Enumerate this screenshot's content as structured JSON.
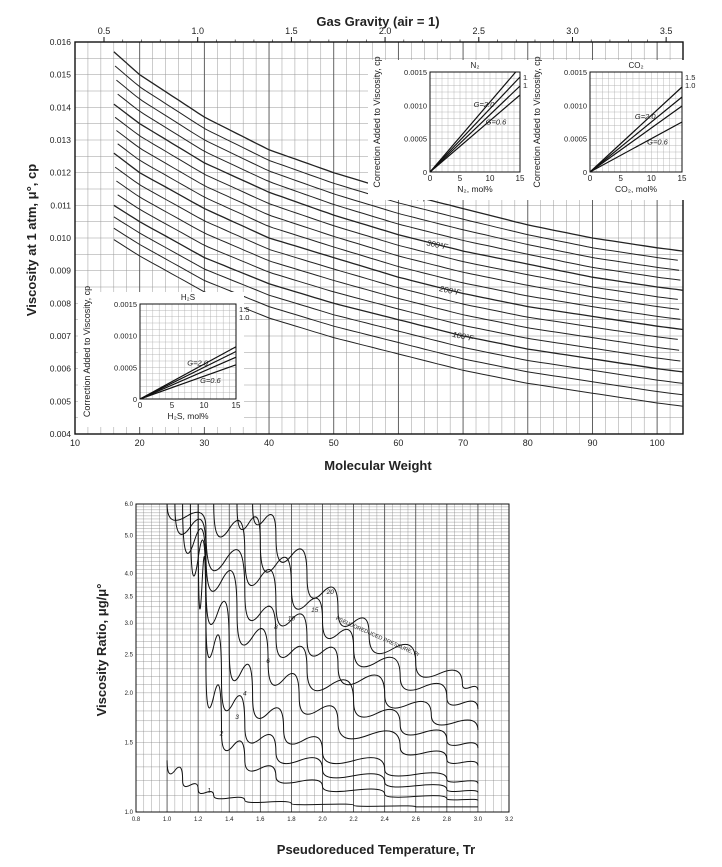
{
  "chart_data": [
    {
      "type": "line",
      "title": "Gas Gravity (air = 1)",
      "xlabel": "Molecular Weight",
      "ylabel": "Viscosity at 1 atm, μ°, cp",
      "xlim": [
        10,
        104
      ],
      "ylim": [
        0.004,
        0.016
      ],
      "x_ticks": [
        "10",
        "20",
        "30",
        "40",
        "50",
        "60",
        "70",
        "80",
        "90",
        "100"
      ],
      "y_ticks": [
        "0.004",
        "0.005",
        "0.006",
        "0.007",
        "0.008",
        "0.009",
        "0.010",
        "0.011",
        "0.012",
        "0.013",
        "0.014",
        "0.015",
        "0.016"
      ],
      "top_axis": {
        "ticks": [
          "0.5",
          "1.0",
          "1.5",
          "2.0",
          "2.5",
          "3.0",
          "3.5"
        ],
        "values": [
          0.5,
          1.0,
          1.5,
          2.0,
          2.5,
          3.0,
          3.5
        ]
      },
      "series": [
        {
          "name": "400°F",
          "label": "400°F",
          "x": [
            16,
            20,
            30,
            40,
            50,
            60,
            70,
            80,
            90,
            100,
            104
          ],
          "y": [
            0.0157,
            0.015,
            0.0137,
            0.0127,
            0.012,
            0.0114,
            0.0109,
            0.0104,
            0.01,
            0.0097,
            0.0096
          ]
        },
        {
          "name": "300°F",
          "label": "300°F",
          "x": [
            16,
            20,
            30,
            40,
            50,
            60,
            70,
            80,
            90,
            100,
            104
          ],
          "y": [
            0.0141,
            0.0135,
            0.0123,
            0.0114,
            0.0107,
            0.0101,
            0.0096,
            0.0092,
            0.0088,
            0.0085,
            0.0084
          ]
        },
        {
          "name": "200°F",
          "label": "200°F",
          "x": [
            16,
            20,
            30,
            40,
            50,
            60,
            70,
            80,
            90,
            100,
            104
          ],
          "y": [
            0.0126,
            0.012,
            0.0109,
            0.01,
            0.0094,
            0.0088,
            0.0083,
            0.0079,
            0.0076,
            0.0073,
            0.0072
          ]
        },
        {
          "name": "100°F",
          "label": "100°F",
          "x": [
            16,
            20,
            30,
            40,
            50,
            60,
            70,
            80,
            90,
            100,
            104
          ],
          "y": [
            0.011,
            0.0105,
            0.0094,
            0.0086,
            0.008,
            0.0075,
            0.007,
            0.0066,
            0.0063,
            0.006,
            0.0059
          ]
        }
      ],
      "insets": [
        {
          "name": "N2",
          "title": "N₂",
          "xlabel": "N₂, mol%",
          "ylabel": "Correction Added to Viscosity, cp",
          "x_ticks": [
            "0",
            "5",
            "10",
            "15"
          ],
          "y_ticks": [
            "0",
            "0.0005",
            "0.0010",
            "0.0015"
          ],
          "xlim": [
            0,
            15
          ],
          "ylim": [
            0,
            0.0015
          ],
          "lines": [
            {
              "name": "G=2.0",
              "label": "G=2.0",
              "slope": 0.000105
            },
            {
              "name": "G=1.5",
              "label": "1.5",
              "slope": 9.5e-05
            },
            {
              "name": "G=1.0",
              "label": "1.0",
              "slope": 8.6e-05
            },
            {
              "name": "G=0.6",
              "label": "G=0.6",
              "slope": 7.7e-05
            }
          ],
          "curve_labels": [
            "1.5",
            "1.0"
          ]
        },
        {
          "name": "CO2",
          "title": "CO₂",
          "xlabel": "CO₂, mol%",
          "ylabel": "Correction Added to Viscosity, cp",
          "x_ticks": [
            "0",
            "5",
            "10",
            "15"
          ],
          "y_ticks": [
            "0",
            "0.0005",
            "0.0010",
            "0.0015"
          ],
          "xlim": [
            0,
            15
          ],
          "ylim": [
            0,
            0.0015
          ],
          "lines": [
            {
              "name": "G=2.0",
              "label": "G=2.0",
              "slope": 8.5e-05
            },
            {
              "name": "G=1.5",
              "label": "1.5",
              "slope": 7.5e-05
            },
            {
              "name": "G=1.0",
              "label": "1.0",
              "slope": 6.6e-05
            },
            {
              "name": "G=0.6",
              "label": "G=0.6",
              "slope": 5e-05
            }
          ],
          "curve_labels": [
            "1.5",
            "1.0"
          ]
        },
        {
          "name": "H2S",
          "title": "H₂S",
          "xlabel": "H₂S, mol%",
          "ylabel": "Correction Added to Viscosity, cp",
          "x_ticks": [
            "0",
            "5",
            "10",
            "15"
          ],
          "y_ticks": [
            "0",
            "0.0005",
            "0.0010",
            "0.0015"
          ],
          "xlim": [
            0,
            15
          ],
          "ylim": [
            0,
            0.0015
          ],
          "lines": [
            {
              "name": "G=2.0",
              "label": "G=2.0",
              "slope": 5.5e-05
            },
            {
              "name": "G=1.5",
              "label": "1.5",
              "slope": 5e-05
            },
            {
              "name": "G=1.0",
              "label": "1.0",
              "slope": 4.4e-05
            },
            {
              "name": "G=0.6",
              "label": "G=0.6",
              "slope": 3.6e-05
            }
          ],
          "curve_labels": [
            "1.5",
            "1.0"
          ]
        }
      ]
    },
    {
      "type": "line",
      "title": "",
      "xlabel": "Pseudoreduced Temperature, Tr",
      "ylabel": "Viscosity Ratio, μg/μ°",
      "xlim": [
        0.8,
        3.0
      ],
      "ylim": [
        1.0,
        6.0
      ],
      "y_scale": "log",
      "x_ticks": [
        "0.8",
        "1.0",
        "1.2",
        "1.4",
        "1.6",
        "1.8",
        "2.0",
        "2.2",
        "2.4",
        "2.6",
        "2.8",
        "3.0",
        "3.2"
      ],
      "x_tick_values": [
        0.8,
        1.0,
        1.2,
        1.4,
        1.6,
        1.8,
        2.0,
        2.2,
        2.4,
        2.6,
        2.8,
        3.0,
        3.2
      ],
      "y_ticks": [
        "1.0",
        "1.5",
        "2.0",
        "2.5",
        "3.0",
        "3.5",
        "4.0",
        "5.0",
        "6.0"
      ],
      "y_tick_values": [
        1.0,
        1.5,
        2.0,
        2.5,
        3.0,
        3.5,
        4.0,
        5.0,
        6.0
      ],
      "annotation": "PSEUDOREDUCED PRESSURE, Pr",
      "series": [
        {
          "name": "Pr=1",
          "label": "1",
          "x": [
            1.0,
            1.1,
            1.2,
            1.3,
            1.5,
            1.8,
            2.2,
            2.6,
            3.0
          ],
          "y": [
            1.35,
            1.2,
            1.14,
            1.1,
            1.07,
            1.05,
            1.04,
            1.03,
            1.03
          ]
        },
        {
          "name": "Pr=2",
          "label": "2",
          "x": [
            1.2,
            1.25,
            1.35,
            1.5,
            1.7,
            2.0,
            2.4,
            2.8,
            3.0
          ],
          "y": [
            6.0,
            2.4,
            1.6,
            1.35,
            1.23,
            1.16,
            1.11,
            1.08,
            1.07
          ]
        },
        {
          "name": "Pr=3",
          "label": "3",
          "x": [
            1.15,
            1.25,
            1.35,
            1.5,
            1.7,
            2.0,
            2.4,
            2.8,
            3.0
          ],
          "y": [
            6.0,
            3.2,
            2.15,
            1.65,
            1.42,
            1.28,
            1.19,
            1.14,
            1.12
          ]
        },
        {
          "name": "Pr=4",
          "label": "4",
          "x": [
            1.1,
            1.25,
            1.4,
            1.55,
            1.75,
            2.0,
            2.4,
            2.8,
            3.0
          ],
          "y": [
            6.0,
            3.9,
            2.6,
            1.95,
            1.62,
            1.42,
            1.28,
            1.21,
            1.18
          ]
        },
        {
          "name": "Pr=6",
          "label": "6",
          "x": [
            1.05,
            1.25,
            1.45,
            1.65,
            1.85,
            2.1,
            2.5,
            2.8,
            3.0
          ],
          "y": [
            6.0,
            4.6,
            3.2,
            2.4,
            1.95,
            1.68,
            1.46,
            1.36,
            1.31
          ]
        },
        {
          "name": "Pr=8",
          "label": "8",
          "x": [
            1.0,
            1.25,
            1.5,
            1.7,
            1.9,
            2.2,
            2.5,
            2.8,
            3.0
          ],
          "y": [
            6.0,
            5.2,
            3.6,
            2.8,
            2.3,
            1.9,
            1.66,
            1.52,
            1.45
          ]
        },
        {
          "name": "Pr=10",
          "label": "10",
          "x": [
            1.3,
            1.5,
            1.7,
            1.9,
            2.1,
            2.4,
            2.7,
            3.0
          ],
          "y": [
            6.0,
            4.5,
            3.4,
            2.75,
            2.35,
            1.98,
            1.76,
            1.61
          ]
        },
        {
          "name": "Pr=15",
          "label": "15",
          "x": [
            1.45,
            1.6,
            1.8,
            2.0,
            2.2,
            2.5,
            2.8,
            3.0
          ],
          "y": [
            6.0,
            4.8,
            3.7,
            3.05,
            2.6,
            2.2,
            1.95,
            1.82
          ]
        },
        {
          "name": "Pr=20",
          "label": "20",
          "x": [
            1.55,
            1.7,
            1.9,
            2.1,
            2.3,
            2.6,
            2.9,
            3.0
          ],
          "y": [
            6.0,
            5.0,
            3.95,
            3.25,
            2.8,
            2.38,
            2.1,
            2.03
          ]
        }
      ]
    }
  ]
}
